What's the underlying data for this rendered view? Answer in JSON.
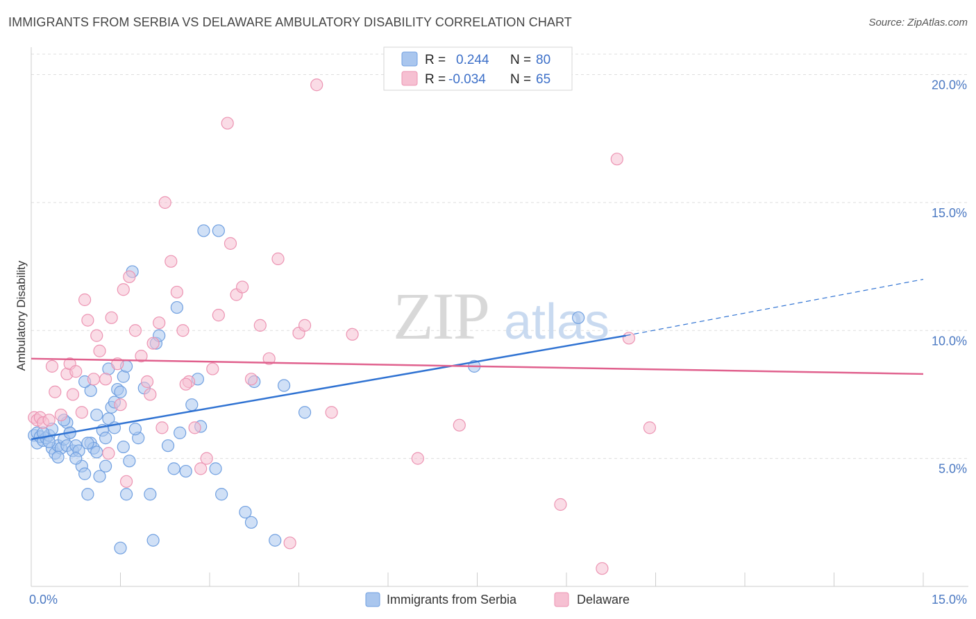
{
  "title": "IMMIGRANTS FROM SERBIA VS DELAWARE AMBULATORY DISABILITY CORRELATION CHART",
  "source": "Source: ZipAtlas.com",
  "watermark": {
    "zip": "ZIP",
    "atlas": "atlas"
  },
  "colors": {
    "blue_fill": "#a9c6ee",
    "blue_stroke": "#6f9fe0",
    "blue_line": "#2f72d2",
    "pink_fill": "#f6c0d2",
    "pink_stroke": "#ec93b2",
    "pink_line": "#e0608d",
    "tick_text": "#4a78c2",
    "grid": "#dddddd"
  },
  "legend": {
    "r_label": "R =",
    "n_label": "N =",
    "rows": [
      {
        "r": "0.244",
        "n": "80"
      },
      {
        "r": "-0.034",
        "n": "65"
      }
    ]
  },
  "bottom_legend": [
    "Immigrants from Serbia",
    "Delaware"
  ],
  "chart_data": {
    "type": "scatter",
    "title": "IMMIGRANTS FROM SERBIA VS DELAWARE AMBULATORY DISABILITY CORRELATION CHART",
    "xlabel": "",
    "ylabel": "Ambulatory Disability",
    "xlim": [
      0,
      15
    ],
    "ylim": [
      0,
      20.8
    ],
    "x_tick_labels": [
      "0.0%",
      "15.0%"
    ],
    "y_ticks": [
      5,
      10,
      15,
      20
    ],
    "y_tick_labels": [
      "5.0%",
      "10.0%",
      "15.0%",
      "20.0%"
    ],
    "grid": true,
    "legend_position": "top-center",
    "series": [
      {
        "name": "Immigrants from Serbia",
        "r": 0.244,
        "n": 80,
        "trend": {
          "x0": 0.0,
          "y0": 5.75,
          "x1": 10.0,
          "y1": 9.8,
          "dash_x1": 15.0,
          "dash_y1": 12.0
        },
        "points": [
          [
            0.05,
            5.9
          ],
          [
            0.1,
            6.0
          ],
          [
            0.1,
            5.6
          ],
          [
            0.15,
            5.85
          ],
          [
            0.2,
            5.7
          ],
          [
            0.25,
            5.8
          ],
          [
            0.3,
            5.9
          ],
          [
            0.35,
            5.4
          ],
          [
            0.4,
            5.2
          ],
          [
            0.45,
            5.5
          ],
          [
            0.5,
            5.4
          ],
          [
            0.55,
            5.75
          ],
          [
            0.6,
            5.5
          ],
          [
            0.65,
            6.0
          ],
          [
            0.7,
            5.3
          ],
          [
            0.75,
            5.5
          ],
          [
            0.8,
            5.3
          ],
          [
            0.85,
            4.7
          ],
          [
            0.9,
            4.4
          ],
          [
            0.95,
            3.6
          ],
          [
            1.0,
            5.6
          ],
          [
            1.05,
            5.4
          ],
          [
            1.1,
            5.25
          ],
          [
            1.15,
            4.3
          ],
          [
            1.2,
            6.1
          ],
          [
            1.25,
            5.8
          ],
          [
            1.3,
            6.55
          ],
          [
            1.35,
            7.0
          ],
          [
            1.4,
            7.2
          ],
          [
            1.45,
            7.7
          ],
          [
            1.5,
            7.6
          ],
          [
            1.55,
            8.2
          ],
          [
            1.6,
            8.6
          ],
          [
            1.65,
            4.9
          ],
          [
            1.7,
            12.3
          ],
          [
            1.8,
            5.8
          ],
          [
            1.9,
            7.75
          ],
          [
            2.0,
            3.6
          ],
          [
            2.05,
            1.8
          ],
          [
            2.1,
            9.5
          ],
          [
            2.15,
            9.8
          ],
          [
            2.3,
            5.5
          ],
          [
            2.4,
            4.6
          ],
          [
            2.45,
            10.9
          ],
          [
            2.5,
            6.0
          ],
          [
            2.6,
            4.5
          ],
          [
            2.7,
            7.1
          ],
          [
            2.8,
            8.1
          ],
          [
            2.85,
            6.25
          ],
          [
            2.9,
            13.9
          ],
          [
            3.1,
            4.6
          ],
          [
            3.15,
            13.9
          ],
          [
            3.2,
            3.6
          ],
          [
            3.6,
            2.9
          ],
          [
            3.7,
            2.5
          ],
          [
            3.75,
            8.0
          ],
          [
            4.1,
            1.8
          ],
          [
            4.25,
            7.85
          ],
          [
            4.6,
            6.8
          ],
          [
            7.45,
            8.6
          ],
          [
            9.2,
            10.5
          ],
          [
            1.0,
            7.65
          ],
          [
            0.9,
            8.0
          ],
          [
            1.3,
            8.5
          ],
          [
            0.45,
            5.05
          ],
          [
            0.35,
            6.15
          ],
          [
            0.2,
            6.0
          ],
          [
            0.6,
            6.4
          ],
          [
            0.75,
            5.0
          ],
          [
            0.3,
            5.65
          ],
          [
            1.1,
            6.7
          ],
          [
            1.4,
            6.2
          ],
          [
            0.65,
            6.0
          ],
          [
            0.95,
            5.6
          ],
          [
            1.55,
            5.45
          ],
          [
            1.75,
            6.15
          ],
          [
            0.55,
            6.5
          ],
          [
            1.25,
            4.7
          ],
          [
            1.6,
            3.6
          ],
          [
            1.5,
            1.5
          ]
        ]
      },
      {
        "name": "Delaware",
        "r": -0.034,
        "n": 65,
        "trend": {
          "x0": 0.0,
          "y0": 8.9,
          "x1": 15.0,
          "y1": 8.3
        },
        "points": [
          [
            0.05,
            6.6
          ],
          [
            0.1,
            6.5
          ],
          [
            0.15,
            6.6
          ],
          [
            0.2,
            6.4
          ],
          [
            0.3,
            6.5
          ],
          [
            0.35,
            8.6
          ],
          [
            0.4,
            7.6
          ],
          [
            0.5,
            6.7
          ],
          [
            0.6,
            8.3
          ],
          [
            0.65,
            8.7
          ],
          [
            0.75,
            8.4
          ],
          [
            0.85,
            6.8
          ],
          [
            0.9,
            11.2
          ],
          [
            0.95,
            10.4
          ],
          [
            1.05,
            8.1
          ],
          [
            1.1,
            9.8
          ],
          [
            1.15,
            9.2
          ],
          [
            1.25,
            8.1
          ],
          [
            1.35,
            10.5
          ],
          [
            1.45,
            8.7
          ],
          [
            1.5,
            7.1
          ],
          [
            1.55,
            11.6
          ],
          [
            1.65,
            12.1
          ],
          [
            1.75,
            10.0
          ],
          [
            1.85,
            9.0
          ],
          [
            1.95,
            8.0
          ],
          [
            2.05,
            9.5
          ],
          [
            2.15,
            10.3
          ],
          [
            2.25,
            15.0
          ],
          [
            2.35,
            12.7
          ],
          [
            2.45,
            11.5
          ],
          [
            2.55,
            10.0
          ],
          [
            2.65,
            8.0
          ],
          [
            2.75,
            6.2
          ],
          [
            2.85,
            4.6
          ],
          [
            2.95,
            5.0
          ],
          [
            3.05,
            8.5
          ],
          [
            3.15,
            10.6
          ],
          [
            3.3,
            18.1
          ],
          [
            3.35,
            13.4
          ],
          [
            3.45,
            11.4
          ],
          [
            3.55,
            11.7
          ],
          [
            3.7,
            8.1
          ],
          [
            3.85,
            10.2
          ],
          [
            4.0,
            8.9
          ],
          [
            4.15,
            12.8
          ],
          [
            4.35,
            1.7
          ],
          [
            4.5,
            9.9
          ],
          [
            4.6,
            10.2
          ],
          [
            4.8,
            19.6
          ],
          [
            5.05,
            6.8
          ],
          [
            5.4,
            9.85
          ],
          [
            6.5,
            5.0
          ],
          [
            7.2,
            6.3
          ],
          [
            8.9,
            3.2
          ],
          [
            9.6,
            0.7
          ],
          [
            9.85,
            16.7
          ],
          [
            10.05,
            9.7
          ],
          [
            10.4,
            6.2
          ],
          [
            0.7,
            7.5
          ],
          [
            1.3,
            5.2
          ],
          [
            1.6,
            4.1
          ],
          [
            2.0,
            7.5
          ],
          [
            2.2,
            6.2
          ],
          [
            2.6,
            7.9
          ]
        ]
      }
    ]
  }
}
